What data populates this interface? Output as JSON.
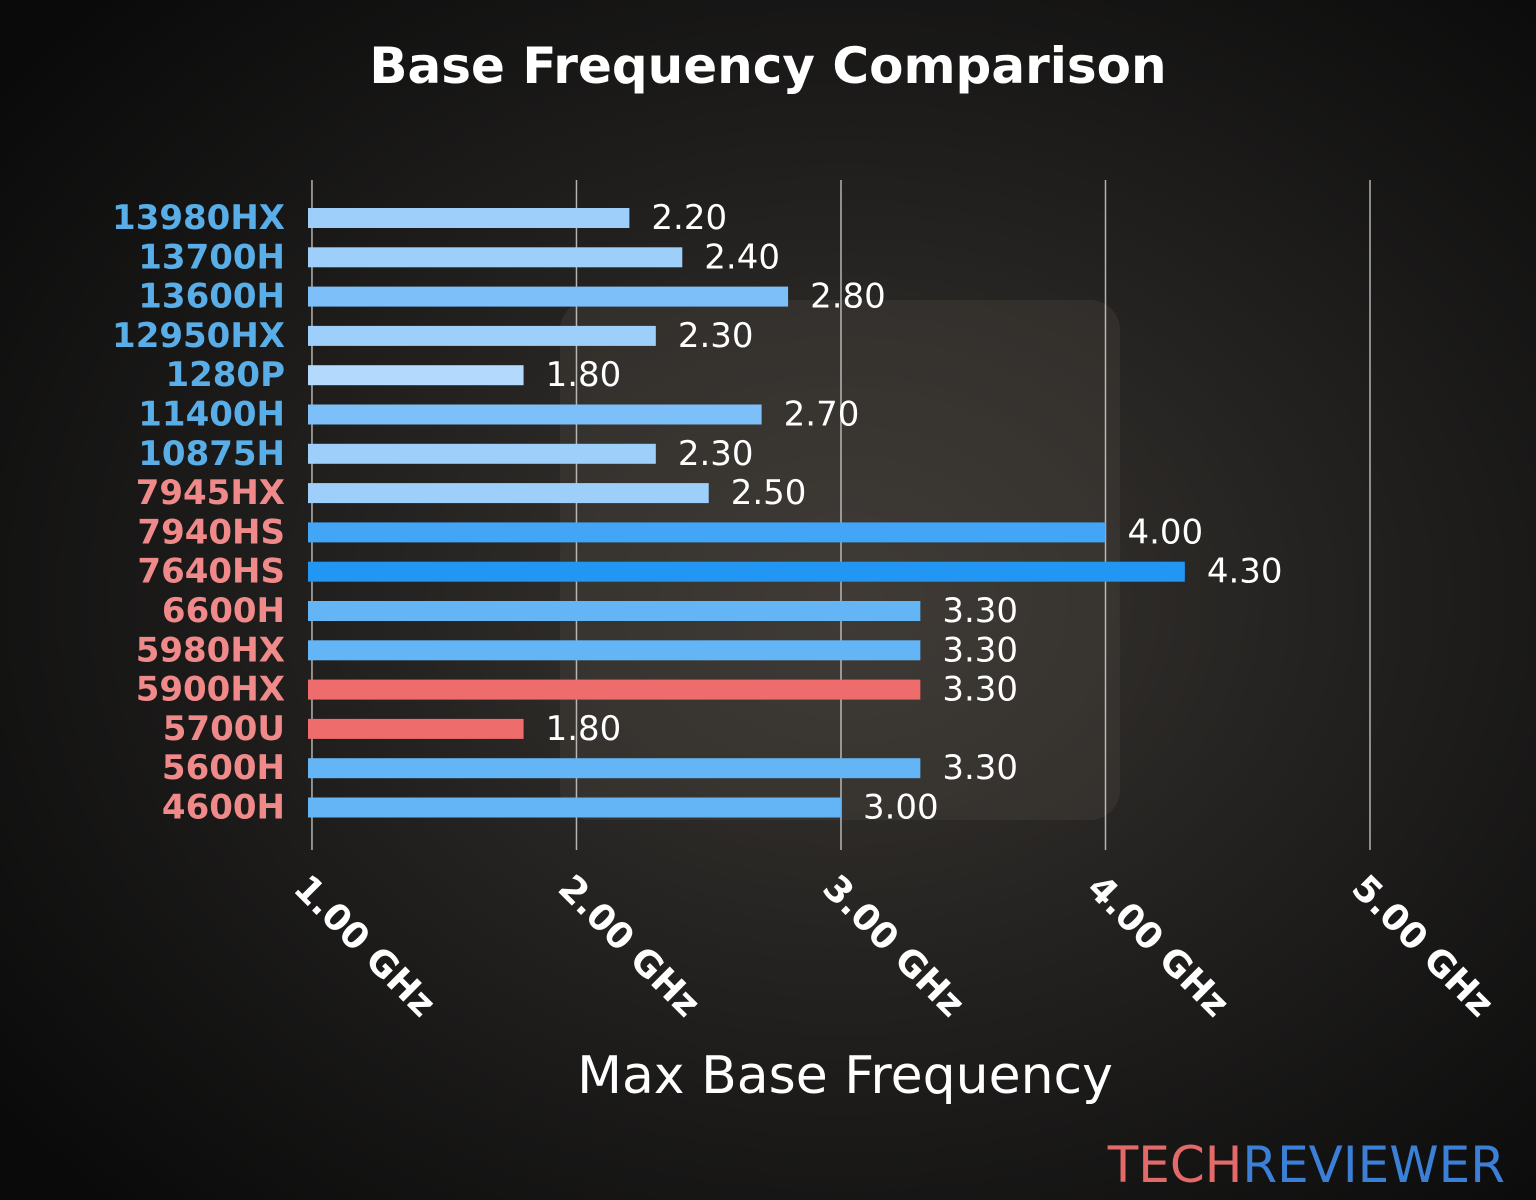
{
  "chart_data": {
    "type": "bar",
    "orientation": "horizontal",
    "title": "Base Frequency Comparison",
    "x_label": "Max Base Frequency",
    "categories": [
      "13980HX",
      "13700H",
      "13600H",
      "12950HX",
      "1280P",
      "11400H",
      "10875H",
      "7945HX",
      "7940HS",
      "7640HS",
      "6600H",
      "5980HX",
      "5900HX",
      "5700U",
      "5600H",
      "4600H"
    ],
    "category_colors": [
      "#5aaee8",
      "#5aaee8",
      "#5aaee8",
      "#5aaee8",
      "#5aaee8",
      "#5aaee8",
      "#5aaee8",
      "#f08a8a",
      "#f08a8a",
      "#f08a8a",
      "#f08a8a",
      "#f08a8a",
      "#f08a8a",
      "#f08a8a",
      "#f08a8a",
      "#f08a8a"
    ],
    "values": [
      2.2,
      2.4,
      2.8,
      2.3,
      1.8,
      2.7,
      2.3,
      2.5,
      4.0,
      4.3,
      3.3,
      3.3,
      3.3,
      1.8,
      3.3,
      3.0
    ],
    "value_labels": [
      "2.20",
      "2.40",
      "2.80",
      "2.30",
      "1.80",
      "2.70",
      "2.30",
      "2.50",
      "4.00",
      "4.30",
      "3.30",
      "3.30",
      "3.30",
      "1.80",
      "3.30",
      "3.00"
    ],
    "colors": [
      "#9ecffb",
      "#9ecffb",
      "#7dbff8",
      "#9ecffb",
      "#b3dafc",
      "#7dbff8",
      "#9ecffb",
      "#9ecffb",
      "#42a5f5",
      "#2196f3",
      "#64b5f6",
      "#64b5f6",
      "#ef6c6c",
      "#ef6c6c",
      "#64b5f6",
      "#64b5f6"
    ],
    "xlim": [
      0.985,
      5.0
    ],
    "xticks": [
      {
        "value": 1,
        "label": "1.00 GHz"
      },
      {
        "value": 2,
        "label": "2.00 GHz"
      },
      {
        "value": 3,
        "label": "3.00 GHz"
      },
      {
        "value": 4,
        "label": "4.00 GHz"
      },
      {
        "value": 5,
        "label": "5.00 GHz"
      }
    ],
    "grid": true,
    "logo": [
      "TECH",
      "REVIEWER"
    ],
    "logo_colors": [
      "#e46a6a",
      "#3b7fd6"
    ]
  }
}
